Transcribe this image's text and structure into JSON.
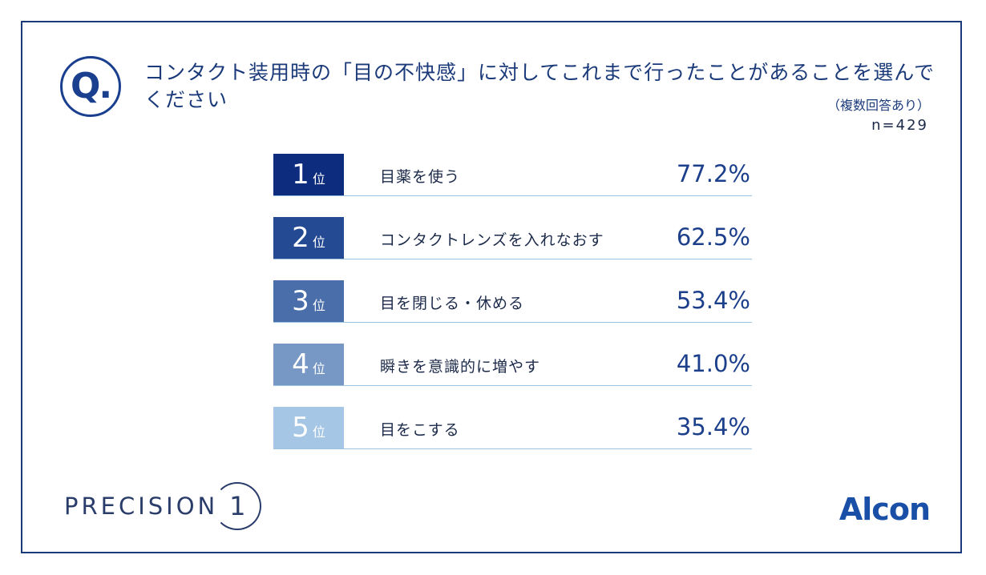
{
  "question": {
    "badge": "Q.",
    "text": "コンタクト装用時の「目の不快感」に対してこれまで行ったことがあることを選んでください",
    "note": "（複数回答あり）",
    "sample": "n=429"
  },
  "chart_data": {
    "type": "table",
    "title": "コンタクト装用時の「目の不快感」に対してこれまで行ったことがあることを選んでください",
    "unit_suffix": "位",
    "rows": [
      {
        "rank": "1",
        "label": "目薬を使う",
        "value_text": "77.2%",
        "value": 77.2,
        "color": "#0e2c7e"
      },
      {
        "rank": "2",
        "label": "コンタクトレンズを入れなおす",
        "value_text": "62.5%",
        "value": 62.5,
        "color": "#244a93"
      },
      {
        "rank": "3",
        "label": "目を閉じる・休める",
        "value_text": "53.4%",
        "value": 53.4,
        "color": "#4a6ea9"
      },
      {
        "rank": "4",
        "label": "瞬きを意識的に増やす",
        "value_text": "41.0%",
        "value": 41.0,
        "color": "#7798c5"
      },
      {
        "rank": "5",
        "label": "目をこする",
        "value_text": "35.4%",
        "value": 35.4,
        "color": "#a6c6e5"
      }
    ]
  },
  "footer": {
    "precision_word": "PRECISION",
    "precision_num": "1",
    "alcon": "Alcon"
  },
  "colors": {
    "frame": "#1b3a7a",
    "accent": "#1a3f8f",
    "rule": "#9dc3e0"
  }
}
